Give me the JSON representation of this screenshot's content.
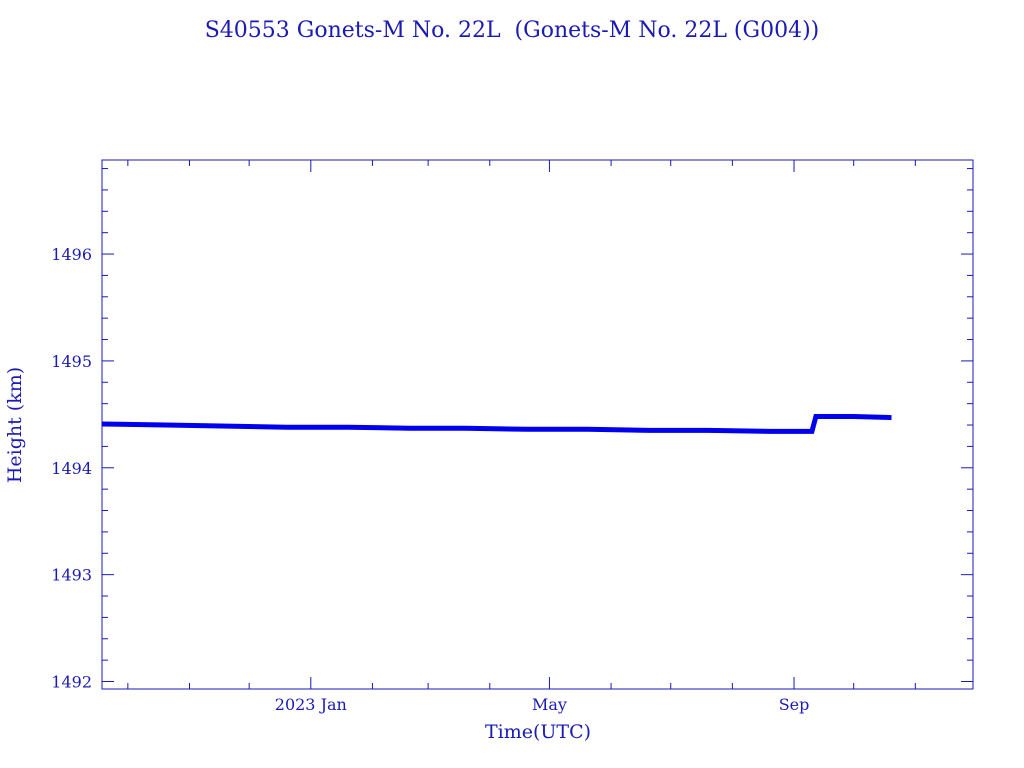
{
  "colors": {
    "axis": "#1a1ab4",
    "series": "#0000ee",
    "background": "#ffffff"
  },
  "chart_data": {
    "type": "line",
    "title": "S40553 Gonets-M No. 22L  (Gonets-M No. 22L (G004))",
    "xlabel": "Time(UTC)",
    "ylabel": "Height (km)",
    "x_axis_type": "date",
    "xlim": [
      "2022-09-18",
      "2023-11-30"
    ],
    "ylim": [
      1491.93,
      1496.88
    ],
    "x_ticks": [
      {
        "label": "2023 Jan",
        "date": "2023-01-01"
      },
      {
        "label": "May",
        "date": "2023-05-01"
      },
      {
        "label": "Sep",
        "date": "2023-09-01"
      }
    ],
    "x_minor_ticks": [
      "2022-10-01",
      "2022-11-01",
      "2022-12-01",
      "2023-02-01",
      "2023-03-01",
      "2023-04-01",
      "2023-06-01",
      "2023-07-01",
      "2023-08-01",
      "2023-10-01",
      "2023-11-01"
    ],
    "y_ticks": [
      1492,
      1493,
      1494,
      1495,
      1496
    ],
    "y_minor_step": 0.2,
    "grid": false,
    "legend": "none",
    "series": [
      {
        "x": [
          "2022-09-18",
          "2022-10-20",
          "2022-11-20",
          "2022-12-20",
          "2023-01-20",
          "2023-02-20",
          "2023-03-20",
          "2023-04-20",
          "2023-05-20",
          "2023-06-20",
          "2023-07-20",
          "2023-08-20",
          "2023-09-10",
          "2023-09-12",
          "2023-10-01",
          "2023-10-20"
        ],
        "y": [
          1494.41,
          1494.4,
          1494.39,
          1494.38,
          1494.38,
          1494.37,
          1494.37,
          1494.36,
          1494.36,
          1494.35,
          1494.35,
          1494.34,
          1494.34,
          1494.48,
          1494.48,
          1494.47
        ]
      }
    ]
  }
}
